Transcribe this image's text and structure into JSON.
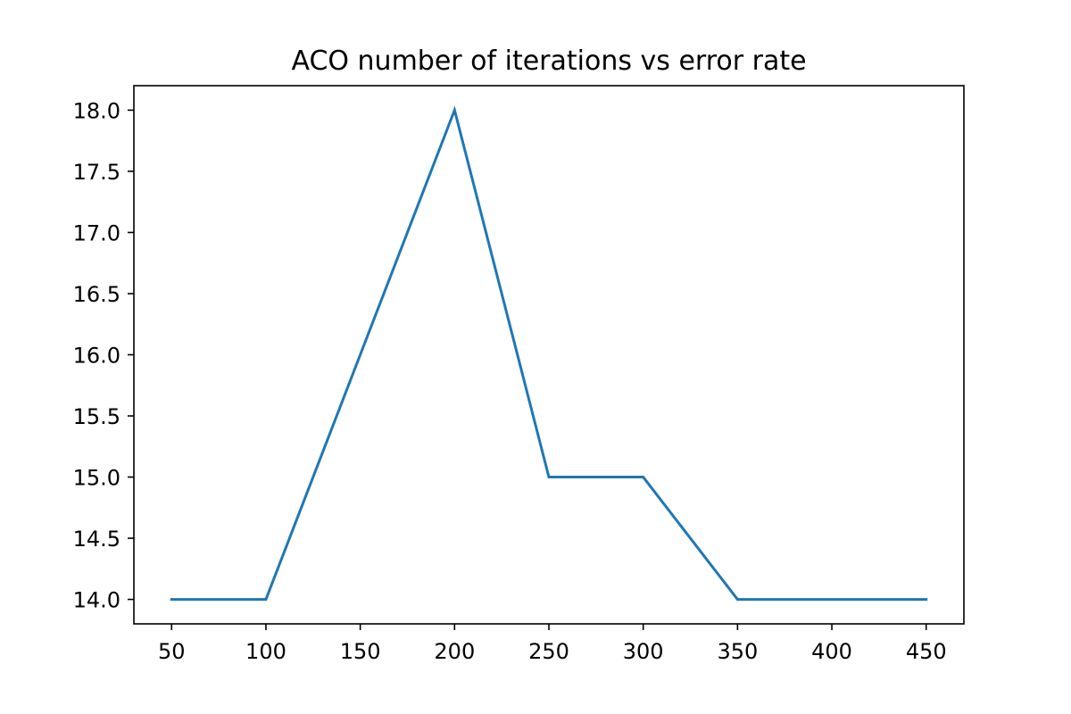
{
  "chart_data": {
    "type": "line",
    "title": "ACO number of iterations vs error rate",
    "xlabel": "",
    "ylabel": "",
    "x": [
      50,
      100,
      150,
      200,
      250,
      300,
      350,
      400,
      450
    ],
    "series": [
      {
        "values": [
          14.0,
          14.0,
          16.0,
          18.0,
          15.0,
          15.0,
          14.0,
          14.0,
          14.0
        ],
        "color": "#1f77b4"
      }
    ],
    "xlim": [
      30,
      470
    ],
    "ylim": [
      13.8,
      18.2
    ],
    "xticks": [
      50,
      100,
      150,
      200,
      250,
      300,
      350,
      400,
      450
    ],
    "xtick_labels": [
      "50",
      "100",
      "150",
      "200",
      "250",
      "300",
      "350",
      "400",
      "450"
    ],
    "yticks": [
      14.0,
      14.5,
      15.0,
      15.5,
      16.0,
      16.5,
      17.0,
      17.5,
      18.0
    ],
    "ytick_labels": [
      "14.0",
      "14.5",
      "15.0",
      "15.5",
      "16.0",
      "16.5",
      "17.0",
      "17.5",
      "18.0"
    ],
    "grid": false,
    "legend": "none"
  }
}
